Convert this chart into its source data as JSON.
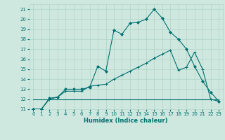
{
  "title": "",
  "xlabel": "Humidex (Indice chaleur)",
  "xlim": [
    -0.5,
    23.5
  ],
  "ylim": [
    11,
    21.5
  ],
  "yticks": [
    11,
    12,
    13,
    14,
    15,
    16,
    17,
    18,
    19,
    20,
    21
  ],
  "xticks": [
    0,
    1,
    2,
    3,
    4,
    5,
    6,
    7,
    8,
    9,
    10,
    11,
    12,
    13,
    14,
    15,
    16,
    17,
    18,
    19,
    20,
    21,
    22,
    23
  ],
  "bg_color": "#cfe8df",
  "line_color": "#007070",
  "grid_color": "#b0d4c8",
  "series1_x": [
    0,
    1,
    2,
    3,
    4,
    5,
    6,
    7,
    8,
    9,
    10,
    11,
    12,
    13,
    14,
    15,
    16,
    17,
    18,
    19,
    20,
    21,
    22,
    23
  ],
  "series1_y": [
    11.0,
    11.0,
    12.1,
    12.2,
    13.0,
    13.0,
    13.0,
    13.2,
    15.3,
    14.8,
    18.9,
    18.5,
    19.6,
    19.7,
    20.0,
    21.0,
    20.1,
    18.7,
    18.0,
    17.0,
    15.3,
    13.8,
    12.7,
    11.8
  ],
  "series2_x": [
    0,
    1,
    2,
    3,
    4,
    5,
    6,
    7,
    8,
    9,
    10,
    11,
    12,
    13,
    14,
    15,
    16,
    17,
    18,
    19,
    20,
    21,
    22,
    23
  ],
  "series2_y": [
    11.0,
    11.0,
    12.0,
    12.2,
    12.8,
    12.8,
    12.8,
    13.3,
    13.4,
    13.5,
    14.0,
    14.4,
    14.8,
    15.2,
    15.6,
    16.1,
    16.5,
    16.9,
    14.9,
    15.2,
    16.7,
    15.0,
    12.0,
    11.8
  ],
  "series3_x": [
    0,
    23
  ],
  "series3_y": [
    12.0,
    12.0
  ]
}
